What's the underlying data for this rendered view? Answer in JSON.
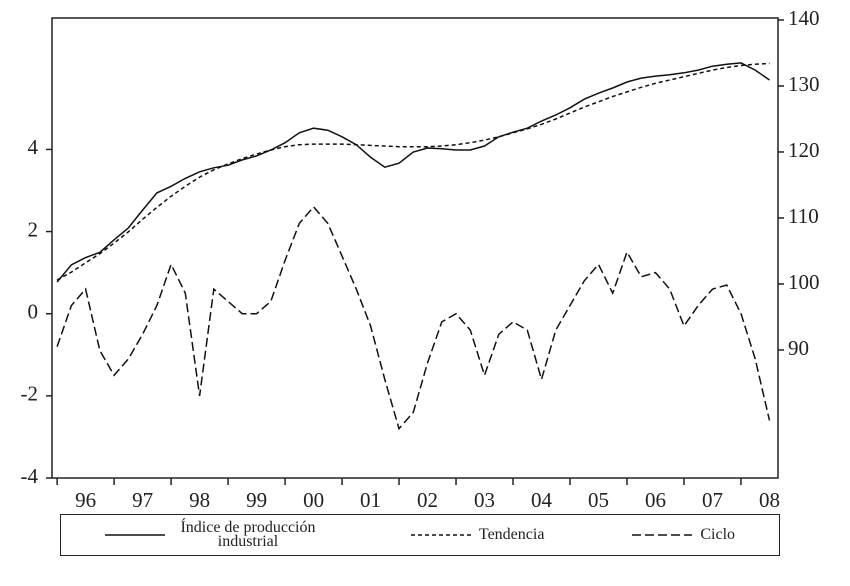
{
  "chart_data": {
    "type": "line",
    "x": [
      1996.0,
      1996.25,
      1996.5,
      1996.75,
      1997.0,
      1997.25,
      1997.5,
      1997.75,
      1998.0,
      1998.25,
      1998.5,
      1998.75,
      1999.0,
      1999.25,
      1999.5,
      1999.75,
      2000.0,
      2000.25,
      2000.5,
      2000.75,
      2001.0,
      2001.25,
      2001.5,
      2001.75,
      2002.0,
      2002.25,
      2002.5,
      2002.75,
      2003.0,
      2003.25,
      2003.5,
      2003.75,
      2004.0,
      2004.25,
      2004.5,
      2004.75,
      2005.0,
      2005.25,
      2005.5,
      2005.75,
      2006.0,
      2006.25,
      2006.5,
      2006.75,
      2007.0,
      2007.25,
      2007.5,
      2007.75,
      2008.0,
      2008.25,
      2008.5
    ],
    "series": [
      {
        "name": "Índice de producción industrial",
        "color": "#111111",
        "dash": "none",
        "axis": "y2",
        "values": [
          100.3,
          102.9,
          104,
          104.8,
          106.7,
          108.5,
          111.2,
          113.8,
          114.8,
          116,
          117,
          117.6,
          118,
          118.8,
          119.4,
          120.3,
          121.4,
          122.9,
          123.6,
          123.3,
          122.3,
          121.1,
          119.2,
          117.7,
          118.3,
          120,
          120.6,
          120.5,
          120.3,
          120.3,
          120.9,
          122.3,
          123,
          123.6,
          124.7,
          125.6,
          126.7,
          128,
          128.9,
          129.7,
          130.6,
          131.2,
          131.5,
          131.7,
          132,
          132.4,
          133,
          133.3,
          133.5,
          132.4,
          130.9
        ]
      },
      {
        "name": "Tendencia",
        "color": "#111111",
        "dash": "4,3",
        "axis": "y2",
        "values": [
          100.6,
          101.8,
          103.2,
          104.6,
          106.2,
          107.9,
          109.8,
          111.6,
          113.3,
          114.8,
          116.2,
          117.3,
          118.2,
          119,
          119.7,
          120.3,
          120.8,
          121.1,
          121.2,
          121.2,
          121.2,
          121.1,
          121,
          120.9,
          120.8,
          120.8,
          120.8,
          120.9,
          121.1,
          121.4,
          121.8,
          122.3,
          122.9,
          123.5,
          124.2,
          125,
          125.9,
          126.8,
          127.6,
          128.4,
          129.1,
          129.8,
          130.4,
          130.9,
          131.4,
          131.9,
          132.4,
          132.8,
          133.1,
          133.3,
          133.4
        ]
      },
      {
        "name": "Ciclo",
        "color": "#111111",
        "dash": "9,4",
        "axis": "y",
        "values": [
          -0.8,
          0.2,
          0.6,
          -0.9,
          -1.5,
          -1.1,
          -0.5,
          0.2,
          1.2,
          0.5,
          -2.0,
          0.6,
          0.3,
          0,
          0,
          0.3,
          1.3,
          2.2,
          2.6,
          2.2,
          1.4,
          0.6,
          -0.3,
          -1.6,
          -2.8,
          -2.4,
          -1.2,
          -0.2,
          0,
          -0.4,
          -1.5,
          -0.5,
          -0.2,
          -0.4,
          -1.6,
          -0.4,
          0.2,
          0.8,
          1.2,
          0.5,
          1.5,
          0.9,
          1,
          0.6,
          -0.3,
          0.2,
          0.6,
          0.7,
          0,
          -1.1,
          -2.6
        ]
      }
    ],
    "xlim": [
      1995.91,
      2008.65
    ],
    "xticks": [
      {
        "value": 1996.5,
        "label": "96"
      },
      {
        "value": 1997.5,
        "label": "97"
      },
      {
        "value": 1998.5,
        "label": "98"
      },
      {
        "value": 1999.5,
        "label": "99"
      },
      {
        "value": 2000.5,
        "label": "00"
      },
      {
        "value": 2001.5,
        "label": "01"
      },
      {
        "value": 2002.5,
        "label": "02"
      },
      {
        "value": 2003.5,
        "label": "03"
      },
      {
        "value": 2004.5,
        "label": "04"
      },
      {
        "value": 2005.5,
        "label": "05"
      },
      {
        "value": 2006.5,
        "label": "06"
      },
      {
        "value": 2007.5,
        "label": "07"
      },
      {
        "value": 2008.5,
        "label": "08"
      }
    ],
    "xminor": [
      1996,
      1997,
      1998,
      1999,
      2000,
      2001,
      2002,
      2003,
      2004,
      2005,
      2006,
      2007,
      2008
    ],
    "ylim": [
      -4,
      7.2
    ],
    "yticks": [
      -4,
      -2,
      0,
      2,
      4
    ],
    "y2lim": [
      70.6,
      140.3
    ],
    "y2ticks": [
      90,
      100,
      110,
      120,
      130,
      140
    ],
    "grid": false,
    "legend": "bottom"
  }
}
